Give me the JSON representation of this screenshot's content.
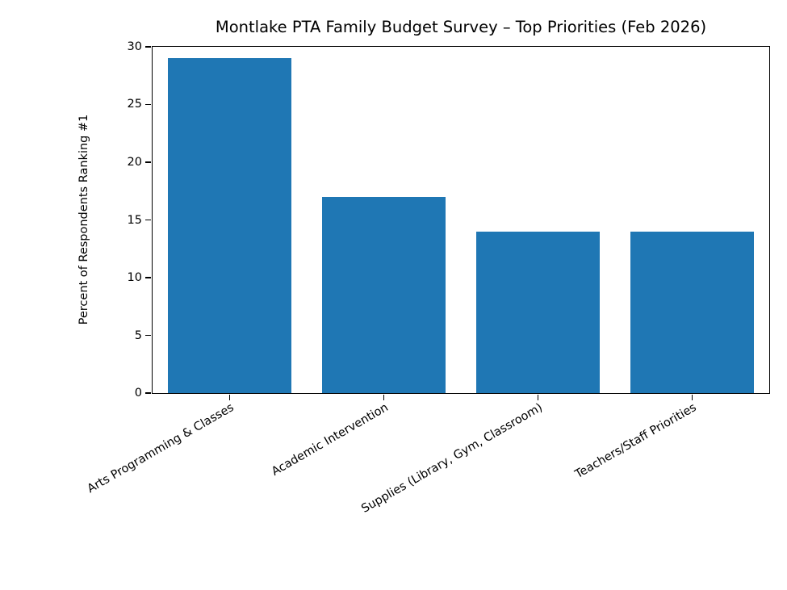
{
  "figure": {
    "background_color": "#ffffff",
    "text_color": "#000000",
    "spine_color": "#000000"
  },
  "chart_data": {
    "type": "bar",
    "title": "Montlake PTA Family Budget Survey – Top Priorities (Feb 2026)",
    "categories": [
      "Arts Programming & Classes",
      "Academic Intervention",
      "Supplies (Library, Gym, Classroom)",
      "Teachers/Staff Priorities"
    ],
    "values": [
      29,
      17,
      14,
      14
    ],
    "xlabel": "",
    "ylabel": "Percent of Respondents Ranking #1",
    "ylim": [
      0,
      30
    ],
    "yticks": [
      0,
      5,
      10,
      15,
      20,
      25,
      30
    ],
    "bar_color": "#1f77b4",
    "bar_width_fraction": 0.8,
    "xtick_rotation_deg": 30,
    "grid": false,
    "legend": "none"
  }
}
